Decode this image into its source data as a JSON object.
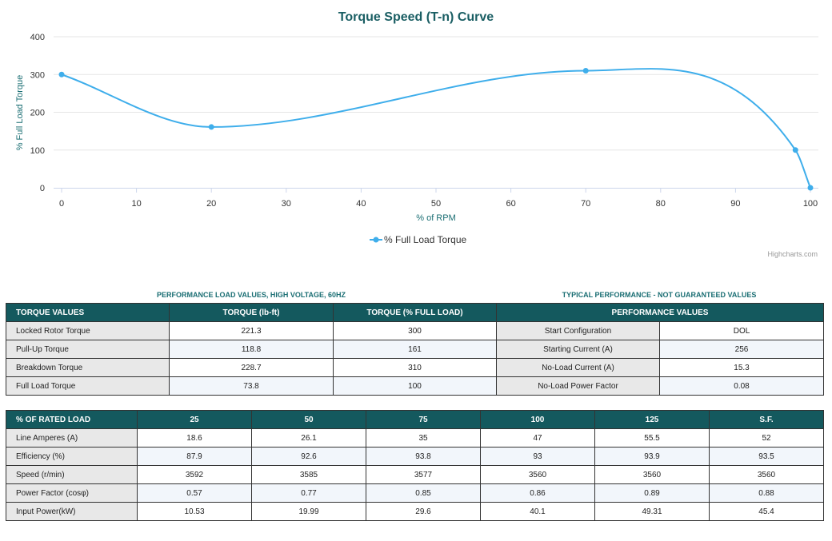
{
  "chart_data": {
    "type": "line",
    "title": "Torque Speed (T-n) Curve",
    "xlabel": "% of RPM",
    "ylabel": "% Full Load Torque",
    "xlim": [
      0,
      100
    ],
    "ylim": [
      0,
      400
    ],
    "x_ticks": [
      "0",
      "10",
      "20",
      "30",
      "40",
      "50",
      "60",
      "70",
      "80",
      "90",
      "100"
    ],
    "y_ticks": [
      "0",
      "100",
      "200",
      "300",
      "400"
    ],
    "series": [
      {
        "name": "% Full Load Torque",
        "color": "#3faeeb",
        "points": [
          [
            0,
            300
          ],
          [
            20,
            161
          ],
          [
            70,
            310
          ],
          [
            98,
            100
          ],
          [
            100,
            0
          ]
        ]
      }
    ],
    "legend": "bottom-center",
    "credits": "Highcharts.com"
  },
  "load_values": {
    "caption": "PERFORMANCE LOAD VALUES, HIGH VOLTAGE, 60Hz",
    "headers": [
      "TORQUE VALUES",
      "TORQUE (lb-ft)",
      "TORQUE (% FULL LOAD)"
    ],
    "rows": [
      [
        "Locked Rotor Torque",
        "221.3",
        "300"
      ],
      [
        "Pull-Up Torque",
        "118.8",
        "161"
      ],
      [
        "Breakdown Torque",
        "228.7",
        "310"
      ],
      [
        "Full Load Torque",
        "73.8",
        "100"
      ]
    ]
  },
  "typical": {
    "caption": "TYPICAL PERFORMANCE - NOT GUARANTEED VALUES",
    "header": "PERFORMANCE VALUES",
    "rows": [
      [
        "Start Configuration",
        "DOL"
      ],
      [
        "Starting Current (A)",
        "256"
      ],
      [
        "No-Load Current (A)",
        "15.3"
      ],
      [
        "No-Load Power Factor",
        "0.08"
      ]
    ]
  },
  "rated_load": {
    "headers": [
      "% OF RATED LOAD",
      "25",
      "50",
      "75",
      "100",
      "125",
      "S.F."
    ],
    "rows": [
      [
        "Line Amperes (A)",
        "18.6",
        "26.1",
        "35",
        "47",
        "55.5",
        "52"
      ],
      [
        "Efficiency (%)",
        "87.9",
        "92.6",
        "93.8",
        "93",
        "93.9",
        "93.5"
      ],
      [
        "Speed (r/min)",
        "3592",
        "3585",
        "3577",
        "3560",
        "3560",
        "3560"
      ],
      [
        "Power Factor (cosφ)",
        "0.57",
        "0.77",
        "0.85",
        "0.86",
        "0.89",
        "0.88"
      ],
      [
        "Input Power(kW)",
        "10.53",
        "19.99",
        "29.6",
        "40.1",
        "49.31",
        "45.4"
      ]
    ]
  }
}
